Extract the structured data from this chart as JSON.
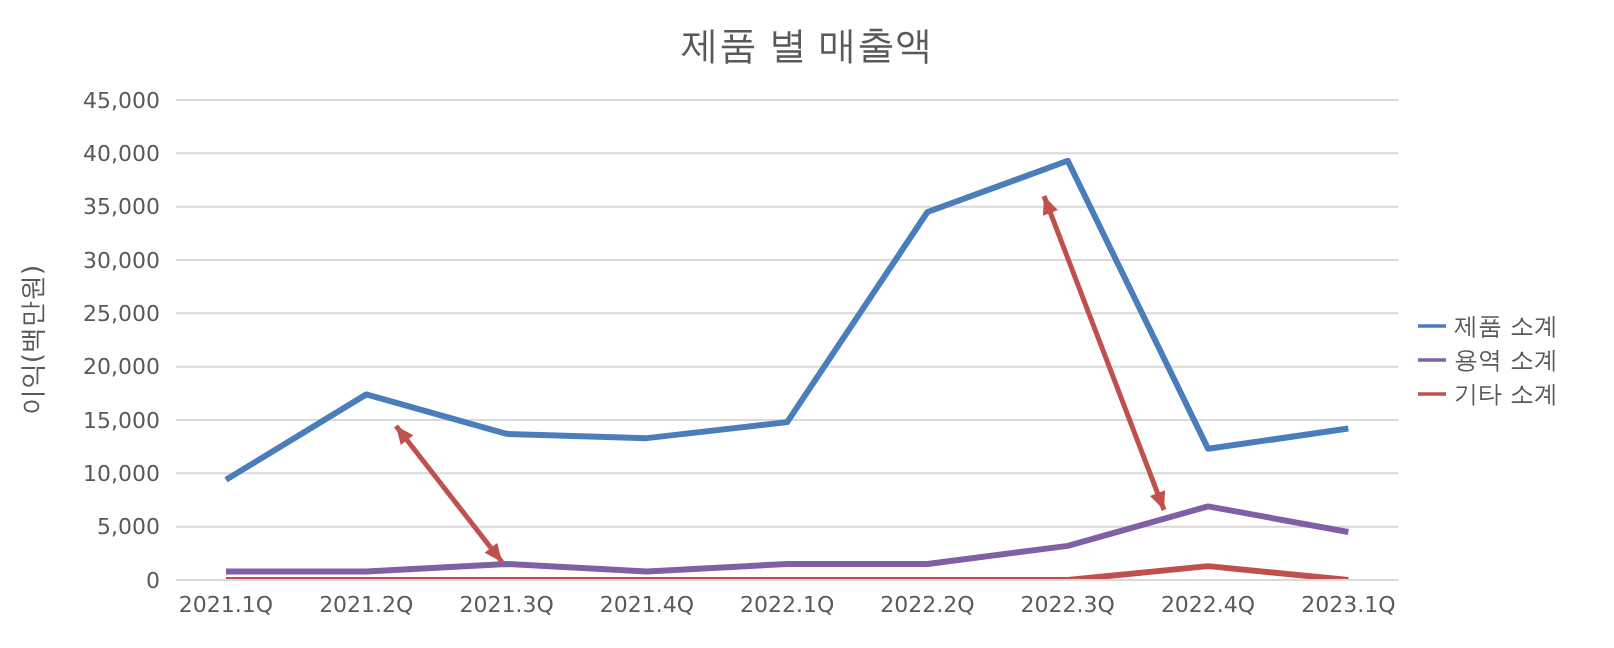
{
  "chart_data": {
    "type": "line",
    "title": "제품 별 매출액",
    "ylabel": "이익(백만원)",
    "categories": [
      "2021.1Q",
      "2021.2Q",
      "2021.3Q",
      "2021.4Q",
      "2022.1Q",
      "2022.2Q",
      "2022.3Q",
      "2022.4Q",
      "2023.1Q"
    ],
    "series": [
      {
        "name": "제품 소계",
        "color": "#4a7ebb",
        "values": [
          9400,
          17400,
          13700,
          13300,
          14800,
          34500,
          39300,
          12300,
          14200
        ]
      },
      {
        "name": "용역 소계",
        "color": "#7f5fa5",
        "values": [
          800,
          800,
          1500,
          800,
          1500,
          1500,
          3200,
          6900,
          4500
        ]
      },
      {
        "name": "기타 소계",
        "color": "#c0504d",
        "values": [
          0,
          0,
          0,
          0,
          0,
          0,
          0,
          1300,
          0
        ]
      }
    ],
    "ylim": [
      0,
      45000
    ],
    "yticks": [
      0,
      {
        "value": 5000,
        "label": "5,000"
      },
      {
        "value": 10000,
        "label": "10,000"
      },
      {
        "value": 15000,
        "label": "15,000"
      },
      {
        "value": 20000,
        "label": "20,000"
      },
      {
        "value": 25000,
        "label": "25,000"
      },
      {
        "value": 30000,
        "label": "30,000"
      },
      {
        "value": 35000,
        "label": "35,000"
      },
      {
        "value": 40000,
        "label": "40,000"
      },
      {
        "value": 45000,
        "label": "45,000"
      }
    ],
    "grid": "y",
    "legend": "right",
    "marker": "none",
    "line_style": "solid"
  }
}
